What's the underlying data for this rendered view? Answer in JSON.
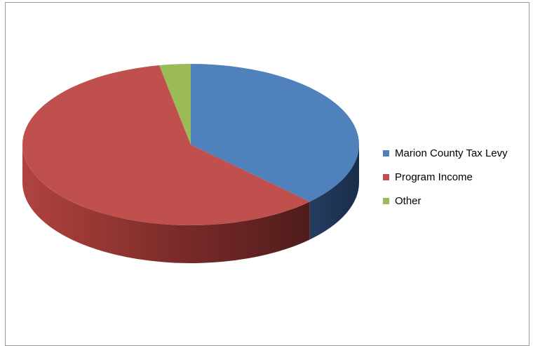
{
  "chart_data": {
    "type": "pie",
    "style": "3d",
    "title": "",
    "slices": [
      {
        "label": "Marion County Tax Levy",
        "value": 37.5,
        "color": "#4f81bd",
        "side_color": "#1f3554"
      },
      {
        "label": "Program Income",
        "value": 59.5,
        "color": "#c0504d",
        "side_color": "#8c3533"
      },
      {
        "label": "Other",
        "value": 3.0,
        "color": "#9bbb59",
        "side_color": "#6b8a3a"
      }
    ],
    "legend_position": "right"
  }
}
